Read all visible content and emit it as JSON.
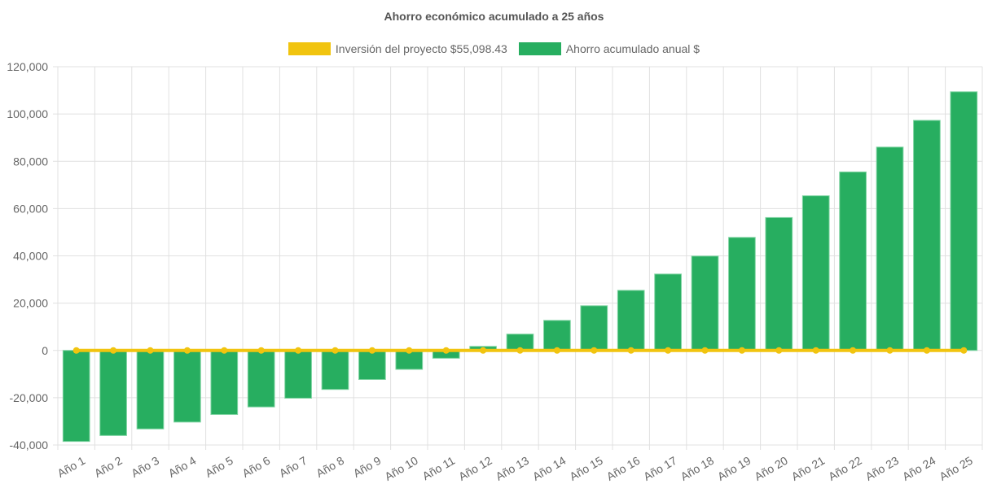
{
  "chart_data": {
    "type": "bar",
    "title": "Ahorro económico acumulado a 25 años",
    "categories": [
      "Año 1",
      "Año 2",
      "Año 3",
      "Año 4",
      "Año 5",
      "Año 6",
      "Año 7",
      "Año 8",
      "Año 9",
      "Año 10",
      "Año 11",
      "Año 12",
      "Año 13",
      "Año 14",
      "Año 15",
      "Año 16",
      "Año 17",
      "Año 18",
      "Año 19",
      "Año 20",
      "Año 21",
      "Año 22",
      "Año 23",
      "Año 24",
      "Año 25"
    ],
    "series": [
      {
        "name": "Inversión del proyecto $55,098.43",
        "type": "line",
        "color": "#f1c40f",
        "values": [
          0,
          0,
          0,
          0,
          0,
          0,
          0,
          0,
          0,
          0,
          0,
          0,
          0,
          0,
          0,
          0,
          0,
          0,
          0,
          0,
          0,
          0,
          0,
          0,
          0
        ]
      },
      {
        "name": "Ahorro acumulado anual $",
        "type": "bar",
        "color": "#27ae60",
        "values": [
          -38500,
          -36000,
          -33200,
          -30300,
          -27100,
          -23900,
          -20200,
          -16500,
          -12300,
          -8000,
          -3300,
          1700,
          6900,
          12700,
          18900,
          25400,
          32300,
          39900,
          47800,
          56200,
          65400,
          75500,
          86000,
          97300,
          109400
        ]
      }
    ],
    "ylim": [
      -40000,
      120000
    ],
    "yticks": [
      "120,000",
      "100,000",
      "80,000",
      "60,000",
      "40,000",
      "20,000",
      "0",
      "-20,000",
      "-40,000"
    ],
    "grid": true,
    "legend": "top"
  }
}
